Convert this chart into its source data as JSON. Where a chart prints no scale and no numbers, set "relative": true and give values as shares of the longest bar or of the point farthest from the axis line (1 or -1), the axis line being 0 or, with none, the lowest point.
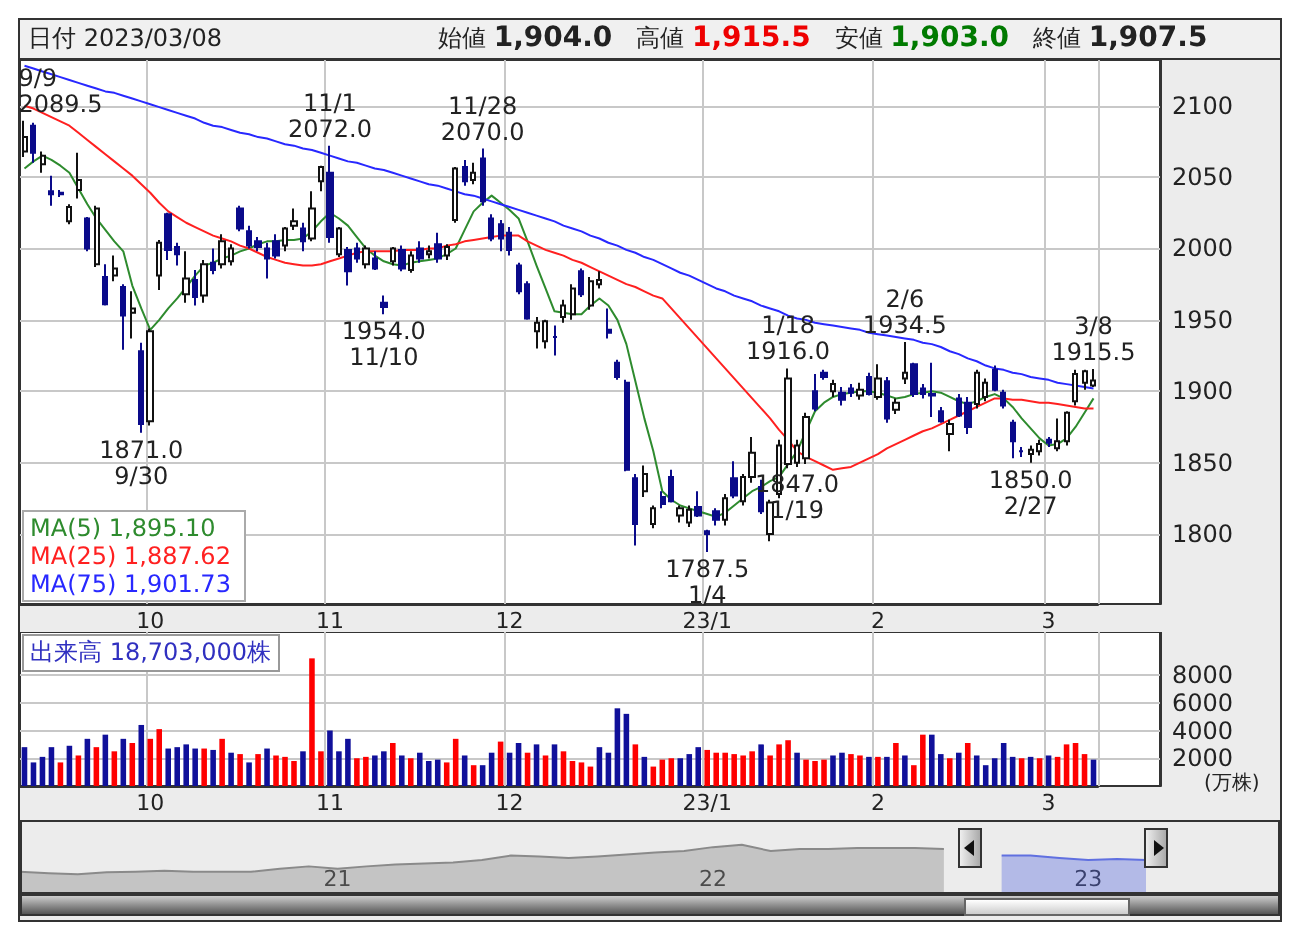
{
  "chart_data": [
    {
      "type": "candlestick",
      "categories": [
        null,
        null,
        null,
        null,
        null,
        null,
        null,
        null,
        null,
        null,
        null,
        null,
        null,
        null,
        "10",
        null,
        null,
        null,
        null,
        null,
        null,
        null,
        null,
        null,
        null,
        null,
        null,
        null,
        null,
        null,
        null,
        null,
        null,
        null,
        "11",
        null,
        null,
        null,
        null,
        null,
        null,
        null,
        null,
        null,
        null,
        null,
        null,
        null,
        null,
        null,
        null,
        null,
        null,
        null,
        "12",
        null,
        null,
        null,
        null,
        null,
        null,
        null,
        null,
        null,
        null,
        null,
        null,
        null,
        null,
        null,
        null,
        null,
        null,
        null,
        null,
        null,
        "23/1",
        null,
        null,
        null,
        null,
        null,
        null,
        null,
        null,
        null,
        null,
        null,
        null,
        null,
        null,
        null,
        null,
        null,
        null,
        "2",
        null,
        null,
        null,
        null,
        null,
        null,
        null,
        null,
        null,
        null,
        null,
        null,
        null,
        null,
        null,
        null,
        null,
        null,
        "3",
        null,
        null,
        null,
        null,
        null
      ],
      "ohlc": [
        [
          2068,
          2089.5,
          2064,
          2078
        ],
        [
          2086,
          2088,
          2060,
          2067
        ],
        [
          2059,
          2068,
          2053,
          2065
        ],
        [
          2040,
          2051,
          2030,
          2038
        ],
        [
          2039,
          2041,
          2036,
          2038
        ],
        [
          2019,
          2031,
          2017,
          2029
        ],
        [
          2041,
          2067,
          2035,
          2048
        ],
        [
          2021,
          2022,
          1998,
          2000
        ],
        [
          1989,
          2030,
          1987,
          2028
        ],
        [
          1980,
          1989,
          1960,
          1961
        ],
        [
          1981,
          1995,
          1977,
          1986
        ],
        [
          1973,
          1975,
          1929,
          1953
        ],
        [
          1955,
          1970,
          1937,
          1958
        ],
        [
          1928,
          1934,
          1871,
          1877
        ],
        [
          1879,
          1944,
          1876,
          1942
        ],
        [
          1981,
          2006,
          1971,
          2004
        ],
        [
          2024,
          2025,
          1992,
          1999
        ],
        [
          2001,
          2004,
          1988,
          1996
        ],
        [
          1968,
          1998,
          1962,
          1979
        ],
        [
          1978,
          1985,
          1960,
          1966
        ],
        [
          1967,
          1992,
          1962,
          1989
        ],
        [
          1990,
          2000,
          1982,
          1985
        ],
        [
          1989,
          2010,
          1986,
          2005
        ],
        [
          1991,
          2003,
          1988,
          2000
        ],
        [
          2028,
          2030,
          2012,
          2014
        ],
        [
          2012,
          2016,
          2000,
          2002
        ],
        [
          2005,
          2008,
          1998,
          2001
        ],
        [
          2000,
          2004,
          1979,
          1993
        ],
        [
          2005,
          2010,
          1993,
          1995
        ],
        [
          2002,
          2015,
          1998,
          2014
        ],
        [
          2016,
          2028,
          2013,
          2019
        ],
        [
          2014,
          2018,
          1998,
          2005
        ],
        [
          2007,
          2040,
          2005,
          2028
        ],
        [
          2047,
          2058,
          2040,
          2057
        ],
        [
          2053,
          2072,
          2004,
          2008
        ],
        [
          1996,
          2015,
          1994,
          2014
        ],
        [
          1999,
          2001,
          1974,
          1984
        ],
        [
          2000,
          2004,
          1990,
          1993
        ],
        [
          1989,
          2002,
          1986,
          2000
        ],
        [
          1993,
          1998,
          1985,
          1986
        ],
        [
          1962,
          1967,
          1954,
          1959
        ],
        [
          1991,
          2001,
          1988,
          2000
        ],
        [
          1999,
          2002,
          1984,
          1986
        ],
        [
          1985,
          1998,
          1983,
          1995
        ],
        [
          2000,
          2005,
          1990,
          1993
        ],
        [
          1996,
          2002,
          1993,
          1998
        ],
        [
          2003,
          2011,
          1990,
          1993
        ],
        [
          1995,
          2003,
          1992,
          2001
        ],
        [
          2020,
          2057,
          2018,
          2056
        ],
        [
          2057,
          2062,
          2044,
          2047
        ],
        [
          2048,
          2060,
          2045,
          2053
        ],
        [
          2063,
          2070,
          2030,
          2033
        ],
        [
          2021,
          2024,
          2005,
          2007
        ],
        [
          2017,
          2020,
          1998,
          2007
        ],
        [
          2011,
          2015,
          1995,
          1999
        ],
        [
          1988,
          1990,
          1968,
          1970
        ],
        [
          1975,
          1977,
          1950,
          1951
        ],
        [
          1942,
          1952,
          1930,
          1948
        ],
        [
          1935,
          1950,
          1930,
          1949
        ],
        [
          1938,
          1946,
          1925,
          1938
        ],
        [
          1952,
          1964,
          1948,
          1960
        ],
        [
          1954,
          1975,
          1950,
          1972
        ],
        [
          1984,
          1986,
          1966,
          1968
        ],
        [
          1960,
          1980,
          1957,
          1977
        ],
        [
          1975,
          1984,
          1972,
          1978
        ],
        [
          1943,
          1958,
          1937,
          1941
        ],
        [
          1920,
          1922,
          1908,
          1910
        ],
        [
          1906,
          1908,
          1844,
          1845
        ],
        [
          1839,
          1842,
          1792,
          1807
        ],
        [
          1830,
          1848,
          1826,
          1842
        ],
        [
          1807,
          1820,
          1804,
          1818
        ],
        [
          1826,
          1830,
          1818,
          1821
        ],
        [
          1840,
          1845,
          1822,
          1823
        ],
        [
          1813,
          1820,
          1808,
          1818
        ],
        [
          1808,
          1820,
          1805,
          1817
        ],
        [
          1819,
          1830,
          1812,
          1813
        ],
        [
          1802,
          1803,
          1787.5,
          1800
        ],
        [
          1816,
          1818,
          1806,
          1810
        ],
        [
          1810,
          1828,
          1806,
          1825
        ],
        [
          1839,
          1851,
          1825,
          1827
        ],
        [
          1823,
          1842,
          1820,
          1840
        ],
        [
          1840,
          1868,
          1836,
          1857
        ],
        [
          1833,
          1838,
          1814,
          1816
        ],
        [
          1800,
          1824,
          1795,
          1822
        ],
        [
          1828,
          1866,
          1825,
          1862
        ],
        [
          1849,
          1916,
          1846,
          1909
        ],
        [
          1850,
          1866,
          1847,
          1862
        ],
        [
          1853,
          1885,
          1849,
          1882
        ],
        [
          1900,
          1912,
          1886,
          1888
        ],
        [
          1913,
          1915,
          1908,
          1910
        ],
        [
          1900,
          1908,
          1896,
          1905
        ],
        [
          1899,
          1903,
          1890,
          1894
        ],
        [
          1902,
          1905,
          1896,
          1899
        ],
        [
          1897,
          1906,
          1894,
          1901
        ],
        [
          1910,
          1913,
          1897,
          1898
        ],
        [
          1896,
          1919,
          1894,
          1909
        ],
        [
          1907,
          1910,
          1878,
          1881
        ],
        [
          1887,
          1895,
          1884,
          1892
        ],
        [
          1909,
          1934.5,
          1905,
          1913
        ],
        [
          1919,
          1920,
          1896,
          1898
        ],
        [
          1902,
          1905,
          1895,
          1898
        ],
        [
          1898,
          1920,
          1882,
          1897
        ],
        [
          1886,
          1889,
          1878,
          1879
        ],
        [
          1870,
          1880,
          1858,
          1877
        ],
        [
          1895,
          1898,
          1882,
          1883
        ],
        [
          1892,
          1896,
          1870,
          1875
        ],
        [
          1891,
          1915,
          1888,
          1913
        ],
        [
          1896,
          1909,
          1893,
          1906
        ],
        [
          1915,
          1918,
          1900,
          1901
        ],
        [
          1899,
          1901,
          1888,
          1890
        ],
        [
          1878,
          1880,
          1853,
          1865
        ],
        [
          1858,
          1861,
          1854,
          1858
        ],
        [
          1856,
          1862,
          1850,
          1859
        ],
        [
          1858,
          1866,
          1855,
          1863
        ],
        [
          1866,
          1868,
          1861,
          1864
        ],
        [
          1860,
          1881,
          1858,
          1865
        ],
        [
          1865,
          1886,
          1862,
          1885
        ],
        [
          1893,
          1915,
          1890,
          1912
        ],
        [
          1906,
          1915,
          1901,
          1914
        ],
        [
          1904,
          1915.5,
          1903,
          1907.5
        ]
      ],
      "series": [
        {
          "type": "line",
          "name": "MA(5) 1,895.10",
          "color": "#2e8b2e",
          "values": [
            2056,
            2061,
            2065,
            2062,
            2058,
            2053,
            2042,
            2031,
            2021,
            2013,
            2005,
            1998,
            1974,
            1958,
            1943,
            1950,
            1958,
            1965,
            1973,
            1981,
            1988,
            1990,
            1993,
            1995,
            1998,
            2000,
            2003,
            2005,
            2005,
            2006,
            2006,
            2007,
            2012,
            2019,
            2025,
            2021,
            2016,
            2008,
            2000,
            1995,
            1991,
            1989,
            1988,
            1990,
            1991,
            1992,
            1993,
            1996,
            2000,
            2013,
            2026,
            2032,
            2037,
            2032,
            2027,
            2021,
            2005,
            1988,
            1972,
            1956,
            1955,
            1954,
            1954,
            1960,
            1965,
            1960,
            1950,
            1933,
            1907,
            1881,
            1858,
            1830,
            1824,
            1820,
            1818,
            1816,
            1814,
            1812,
            1815,
            1820,
            1825,
            1830,
            1833,
            1837,
            1840,
            1849,
            1858,
            1872,
            1886,
            1892,
            1896,
            1898,
            1899,
            1900,
            1900,
            1899,
            1897,
            1895,
            1896,
            1898,
            1899,
            1900,
            1899,
            1896,
            1893,
            1891,
            1893,
            1896,
            1898,
            1895,
            1889,
            1881,
            1874,
            1867,
            1862,
            1863,
            1867,
            1875,
            1885,
            1895
          ]
        },
        {
          "type": "line",
          "name": "MA(25) 1,887.62",
          "color": "#ff2020",
          "values": [
            2100,
            2098,
            2095,
            2092,
            2089,
            2086,
            2081,
            2076,
            2071,
            2066,
            2061,
            2056,
            2051,
            2045,
            2039,
            2032,
            2026,
            2022,
            2018,
            2015,
            2012,
            2009,
            2007,
            2005,
            2002,
            2000,
            1997,
            1994,
            1992,
            1990,
            1989,
            1988,
            1988,
            1989,
            1991,
            1993,
            1995,
            1997,
            1998,
            1998,
            1998,
            1998,
            1999,
            1999,
            1999,
            2000,
            2000,
            2002,
            2003,
            2005,
            2006,
            2007,
            2008,
            2009,
            2009,
            2009,
            2005,
            2002,
            1999,
            1997,
            1995,
            1992,
            1990,
            1987,
            1984,
            1981,
            1978,
            1975,
            1973,
            1970,
            1967,
            1965,
            1958,
            1951,
            1944,
            1937,
            1930,
            1923,
            1916,
            1909,
            1902,
            1895,
            1888,
            1881,
            1873,
            1866,
            1858,
            1854,
            1851,
            1848,
            1845,
            1846,
            1847,
            1850,
            1853,
            1856,
            1860,
            1863,
            1866,
            1869,
            1872,
            1874,
            1877,
            1880,
            1883,
            1886,
            1889,
            1892,
            1895,
            1895,
            1894,
            1894,
            1893,
            1892,
            1892,
            1891,
            1890,
            1889,
            1888,
            1888
          ]
        },
        {
          "type": "line",
          "name": "MA(75) 1,901.73",
          "color": "#2828ff",
          "values": [
            2128,
            2126,
            2124,
            2122,
            2120,
            2118,
            2116,
            2114,
            2112,
            2110,
            2109,
            2107,
            2105,
            2103,
            2101,
            2099,
            2097,
            2095,
            2093,
            2091,
            2088,
            2086,
            2085,
            2083,
            2081,
            2080,
            2078,
            2077,
            2075,
            2073,
            2072,
            2070,
            2069,
            2067,
            2065,
            2063,
            2061,
            2060,
            2058,
            2056,
            2055,
            2053,
            2051,
            2049,
            2047,
            2045,
            2044,
            2042,
            2040,
            2038,
            2037,
            2035,
            2033,
            2031,
            2029,
            2027,
            2025,
            2023,
            2021,
            2019,
            2016,
            2014,
            2012,
            2009,
            2007,
            2004,
            2002,
            1999,
            1997,
            1994,
            1992,
            1989,
            1986,
            1983,
            1981,
            1978,
            1975,
            1972,
            1970,
            1967,
            1965,
            1963,
            1960,
            1958,
            1956,
            1953,
            1951,
            1950,
            1948,
            1947,
            1946,
            1945,
            1944,
            1943,
            1941,
            1940,
            1939,
            1938,
            1937,
            1936,
            1934,
            1933,
            1931,
            1928,
            1926,
            1923,
            1921,
            1918,
            1916,
            1915,
            1913,
            1912,
            1910,
            1909,
            1908,
            1906,
            1905,
            1904,
            1903,
            1902
          ]
        }
      ],
      "ylim": [
        1751,
        2132
      ],
      "yticks": [
        1800,
        1850,
        1900,
        1950,
        2000,
        2050,
        2100
      ],
      "grid": true,
      "legend": "bottom left",
      "annotations": [
        "日付 2023/03/08",
        "始値 1,904.0",
        "高値 1,915.5",
        "安値 1,903.0",
        "終値 1,907.5",
        {
          "text": "9/9\n2089.5",
          "y": 2089.5
        },
        {
          "text": "1871.0\n9/30",
          "y": 1871.0
        },
        {
          "text": "11/1\n2072.0",
          "y": 2072.0
        },
        {
          "text": "1954.0\n11/10",
          "y": 1954.0
        },
        {
          "text": "11/28\n2070.0",
          "y": 2070.0
        },
        {
          "text": "1787.5\n1/4",
          "y": 1787.5
        },
        {
          "text": "1/18\n1916.0",
          "y": 1916.0
        },
        {
          "text": "1847.0\n1/19",
          "y": 1847.0
        },
        {
          "text": "2/6\n1934.5",
          "y": 1934.5
        },
        {
          "text": "1850.0\n2/27",
          "y": 1850.0
        },
        {
          "text": "3/8\n1915.5",
          "y": 1915.5
        }
      ]
    },
    {
      "type": "bar",
      "title": "出来高 18,703,000株",
      "ylabel": "(万株)",
      "categories": [
        null,
        null,
        null,
        null,
        null,
        null,
        null,
        null,
        null,
        null,
        null,
        null,
        null,
        null,
        "10",
        null,
        null,
        null,
        null,
        null,
        null,
        null,
        null,
        null,
        null,
        null,
        null,
        null,
        null,
        null,
        null,
        null,
        null,
        null,
        "11",
        null,
        null,
        null,
        null,
        null,
        null,
        null,
        null,
        null,
        null,
        null,
        null,
        null,
        null,
        null,
        null,
        null,
        null,
        null,
        "12",
        null,
        null,
        null,
        null,
        null,
        null,
        null,
        null,
        null,
        null,
        null,
        null,
        null,
        null,
        null,
        null,
        null,
        null,
        null,
        null,
        null,
        "23/1",
        null,
        null,
        null,
        null,
        null,
        null,
        null,
        null,
        null,
        null,
        null,
        null,
        null,
        null,
        null,
        null,
        null,
        null,
        "2",
        null,
        null,
        null,
        null,
        null,
        null,
        null,
        null,
        null,
        null,
        null,
        null,
        null,
        null,
        null,
        null,
        null,
        null,
        "3",
        null,
        null,
        null,
        null,
        null
      ],
      "values": [
        2800,
        1700,
        2100,
        2800,
        1700,
        2900,
        2200,
        3400,
        2800,
        3700,
        2500,
        3400,
        3100,
        4400,
        3400,
        4100,
        2700,
        2800,
        3000,
        2700,
        2700,
        2600,
        3400,
        2400,
        2300,
        1700,
        2300,
        2700,
        2200,
        2100,
        1800,
        2500,
        9200,
        2500,
        4000,
        2500,
        3400,
        2000,
        2100,
        2200,
        2500,
        3100,
        2200,
        2000,
        2400,
        1800,
        1900,
        1700,
        3400,
        2200,
        1500,
        1500,
        2400,
        3200,
        2400,
        3100,
        2400,
        3000,
        2200,
        3000,
        2500,
        1800,
        1700,
        1400,
        2800,
        2400,
        5600,
        5200,
        3000,
        2100,
        1400,
        1900,
        2000,
        2000,
        2300,
        2800,
        2600,
        2400,
        2400,
        2300,
        2200,
        2500,
        3000,
        2200,
        3000,
        3300,
        2400,
        1900,
        1800,
        1900,
        2200,
        2400,
        2300,
        2200,
        2100,
        2100,
        2100,
        3100,
        2200,
        1500,
        3700,
        3700,
        2300,
        2000,
        2400,
        3100,
        2200,
        1500,
        2000,
        3100,
        2100,
        2000,
        2100,
        2000,
        2200,
        2100,
        3000,
        3100,
        2300,
        1900
      ],
      "colors": [
        "#10109a",
        "#10109a",
        "#10109a",
        "#10109a",
        "#ff0000",
        "#10109a",
        "#ff0000",
        "#10109a",
        "#ff0000",
        "#10109a",
        "#ff0000",
        "#10109a",
        "#ff0000",
        "#10109a",
        "#ff0000",
        "#ff0000",
        "#10109a",
        "#10109a",
        "#10109a",
        "#10109a",
        "#ff0000",
        "#10109a",
        "#ff0000",
        "#10109a",
        "#ff0000",
        "#10109a",
        "#ff0000",
        "#10109a",
        "#ff0000",
        "#ff0000",
        "#ff0000",
        "#10109a",
        "#ff0000",
        "#ff0000",
        "#10109a",
        "#10109a",
        "#10109a",
        "#ff0000",
        "#ff0000",
        "#10109a",
        "#10109a",
        "#ff0000",
        "#10109a",
        "#ff0000",
        "#10109a",
        "#10109a",
        "#10109a",
        "#ff0000",
        "#ff0000",
        "#10109a",
        "#ff0000",
        "#10109a",
        "#10109a",
        "#ff0000",
        "#10109a",
        "#10109a",
        "#ff0000",
        "#10109a",
        "#ff0000",
        "#10109a",
        "#ff0000",
        "#ff0000",
        "#ff0000",
        "#ff0000",
        "#10109a",
        "#10109a",
        "#10109a",
        "#10109a",
        "#ff0000",
        "#10109a",
        "#ff0000",
        "#ff0000",
        "#ff0000",
        "#10109a",
        "#10109a",
        "#10109a",
        "#ff0000",
        "#ff0000",
        "#ff0000",
        "#ff0000",
        "#ff0000",
        "#ff0000",
        "#10109a",
        "#ff0000",
        "#ff0000",
        "#ff0000",
        "#10109a",
        "#ff0000",
        "#ff0000",
        "#ff0000",
        "#10109a",
        "#10109a",
        "#ff0000",
        "#ff0000",
        "#10109a",
        "#ff0000",
        "#10109a",
        "#ff0000",
        "#10109a",
        "#ff0000",
        "#ff0000",
        "#10109a",
        "#10109a",
        "#ff0000",
        "#10109a",
        "#ff0000",
        "#10109a",
        "#10109a",
        "#10109a",
        "#10109a",
        "#10109a",
        "#ff0000",
        "#10109a",
        "#ff0000",
        "#10109a",
        "#ff0000",
        "#ff0000",
        "#ff0000",
        "#ff0000",
        "#10109a"
      ],
      "ylim": [
        0,
        11100
      ],
      "yticks": [
        2000,
        4000,
        6000,
        8000
      ],
      "grid": true
    },
    {
      "type": "area",
      "relative": true,
      "categories": [
        null,
        null,
        null,
        null,
        null,
        null,
        null,
        null,
        null,
        null,
        null,
        "21",
        null,
        null,
        null,
        null,
        null,
        null,
        null,
        null,
        null,
        null,
        null,
        null,
        "22",
        null,
        null,
        null,
        null,
        null,
        null,
        null,
        null,
        null,
        null,
        null,
        null,
        "23",
        null,
        null
      ],
      "series": [
        {
          "color": "#8a8a8a",
          "values": [
            0.45,
            0.42,
            0.4,
            0.44,
            0.45,
            0.47,
            0.45,
            0.45,
            0.45,
            0.51,
            0.56,
            0.51,
            0.56,
            0.6,
            0.62,
            0.64,
            0.69,
            0.78,
            0.76,
            0.73,
            0.76,
            0.8,
            0.84,
            0.87,
            0.95,
            1,
            0.87,
            0.91,
            0.91,
            0.93,
            0.93,
            0.93,
            0.91,
            null,
            null,
            null,
            null,
            null,
            null,
            null
          ]
        },
        {
          "color": "#6070e0",
          "values": [
            null,
            null,
            null,
            null,
            null,
            null,
            null,
            null,
            null,
            null,
            null,
            null,
            null,
            null,
            null,
            null,
            null,
            null,
            null,
            null,
            null,
            null,
            null,
            null,
            null,
            null,
            null,
            null,
            null,
            null,
            null,
            null,
            null,
            null,
            0.78,
            0.78,
            0.73,
            0.69,
            0.71,
            0.69
          ]
        }
      ]
    }
  ]
}
